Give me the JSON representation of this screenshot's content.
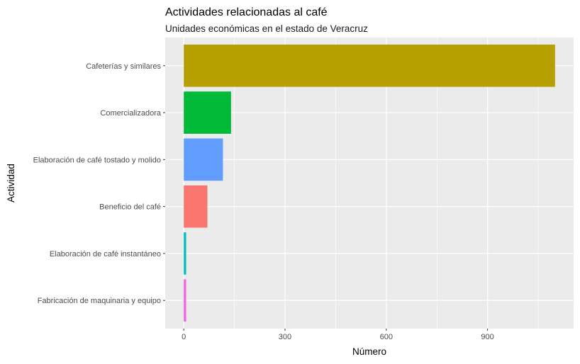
{
  "chart_data": {
    "type": "bar",
    "orientation": "horizontal",
    "title": "Actividades relacionadas al café",
    "subtitle": "Unidades económicas en el estado de Veracruz",
    "xlabel": "Número",
    "ylabel": "Actividad",
    "xlim": [
      -55,
      1155
    ],
    "x_ticks": [
      0,
      300,
      600,
      900
    ],
    "grid": true,
    "legend": "none",
    "categories": [
      "Cafeterías y similares",
      "Comercializadora",
      "Elaboración de café tostado y molido",
      "Beneficio del café",
      "Elaboración de café instantáneo",
      "Fabricación de maquinaria y equipo"
    ],
    "values": [
      1100,
      140,
      116,
      70,
      7,
      7
    ],
    "colors": [
      "#B79F00",
      "#00BA38",
      "#619CFF",
      "#F8766D",
      "#00BFC4",
      "#F564E3"
    ]
  },
  "style": {
    "panel_background": "#EBEBEB",
    "gridline_color": "#FFFFFF",
    "tick_color": "#333333"
  }
}
